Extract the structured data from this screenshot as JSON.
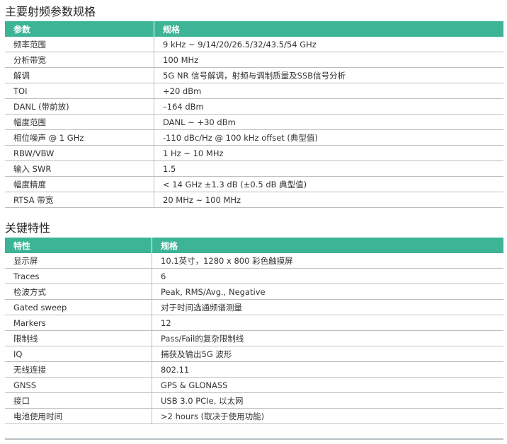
{
  "colors": {
    "header_bg": "#3db496"
  },
  "sections": [
    {
      "title": "主要射频参数规格",
      "headers": [
        "参数",
        "规格"
      ],
      "rows": [
        [
          "频率范围",
          "9 kHz ~ 9/14/20/26.5/32/43.5/54 GHz"
        ],
        [
          "分析带宽",
          "100 MHz"
        ],
        [
          "解调",
          "5G NR 信号解调，射频与调制质量及SSB信号分析"
        ],
        [
          "TOI",
          "+20 dBm"
        ],
        [
          "DANL (带前放)",
          "–164 dBm"
        ],
        [
          "幅度范围",
          "DANL ~ +30 dBm"
        ],
        [
          "相位噪声 @ 1 GHz",
          "-110 dBc/Hz @ 100 kHz offset (典型值)"
        ],
        [
          "RBW/VBW",
          "1 Hz ~ 10 MHz"
        ],
        [
          "输入 SWR",
          "1.5"
        ],
        [
          "幅度精度",
          "< 14 GHz ±1.3 dB (±0.5 dB 典型值)"
        ],
        [
          "RTSA 带宽",
          "20 MHz ~ 100 MHz"
        ]
      ]
    },
    {
      "title": "关键特性",
      "headers": [
        "特性",
        "规格"
      ],
      "rows": [
        [
          "显示屏",
          "10.1英寸，1280 x 800 彩色触摸屏"
        ],
        [
          "Traces",
          "6"
        ],
        [
          "检波方式",
          "Peak, RMS/Avg., Negative"
        ],
        [
          "Gated sweep",
          "对于时间选通频谱测量"
        ],
        [
          "Markers",
          "12"
        ],
        [
          "限制线",
          "Pass/Fail的复杂限制线"
        ],
        [
          "IQ",
          "捕获及输出5G 波形"
        ],
        [
          "无线连接",
          "802.11"
        ],
        [
          "GNSS",
          "GPS & GLONASS"
        ],
        [
          "接口",
          "USB 3.0 PCIe, 以太网"
        ],
        [
          "电池使用时间",
          ">2 hours (取决于使用功能)"
        ]
      ]
    }
  ]
}
